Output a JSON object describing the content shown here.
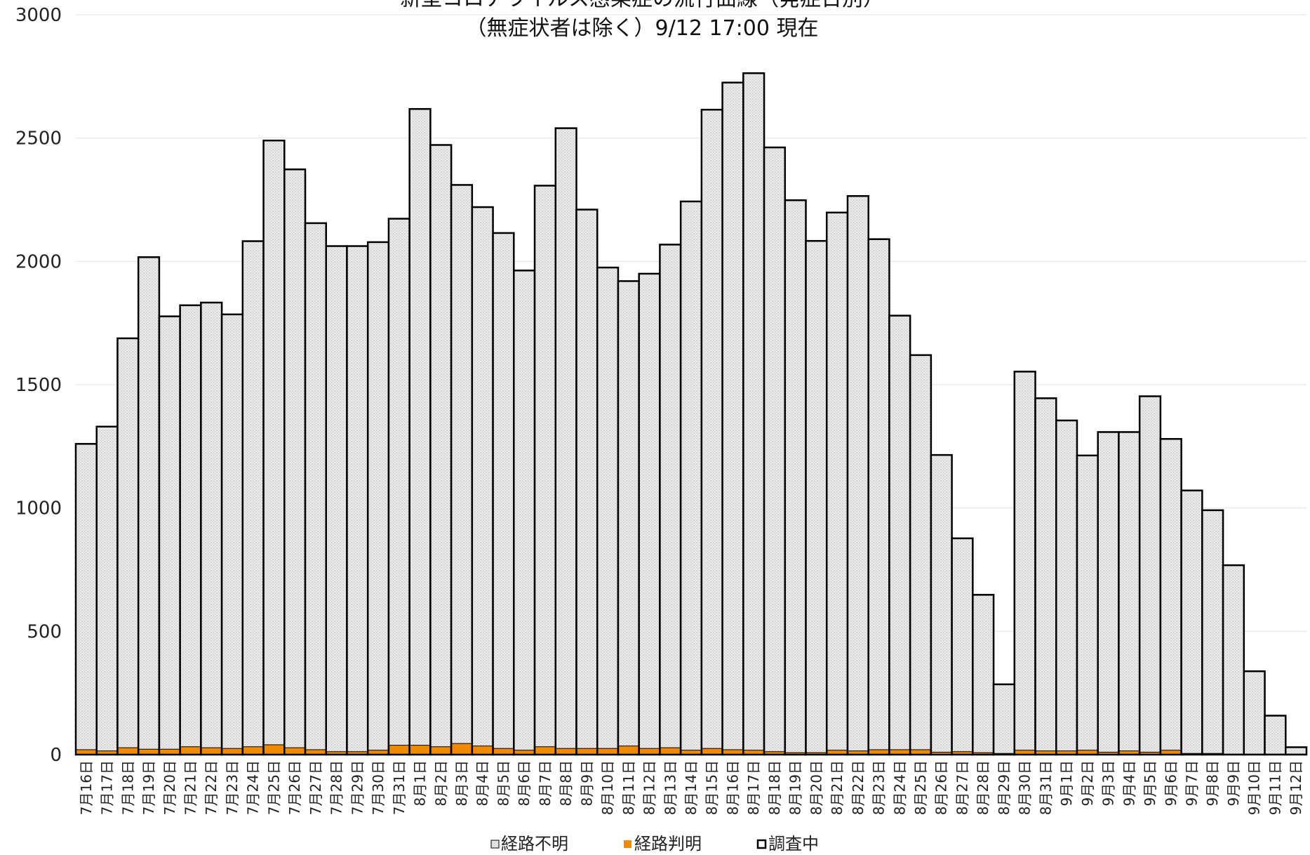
{
  "chart_data": {
    "type": "bar",
    "stacked": true,
    "title_lines": [
      "新型コロナウイルス感染症の流行曲線（発症日別）",
      "（無症状者は除く）9/12 17:00 現在"
    ],
    "ylim": [
      0,
      3000
    ],
    "yticks": [
      0,
      500,
      1000,
      1500,
      2000,
      2500,
      3000
    ],
    "grid": true,
    "legend_position": "bottom",
    "categories": [
      "7月16日",
      "7月17日",
      "7月18日",
      "7月19日",
      "7月20日",
      "7月21日",
      "7月22日",
      "7月23日",
      "7月24日",
      "7月25日",
      "7月26日",
      "7月27日",
      "7月28日",
      "7月29日",
      "7月30日",
      "7月31日",
      "8月1日",
      "8月2日",
      "8月3日",
      "8月4日",
      "8月5日",
      "8月6日",
      "8月7日",
      "8月8日",
      "8月9日",
      "8月10日",
      "8月11日",
      "8月12日",
      "8月13日",
      "8月14日",
      "8月15日",
      "8月16日",
      "8月17日",
      "8月18日",
      "8月19日",
      "8月20日",
      "8月21日",
      "8月22日",
      "8月23日",
      "8月24日",
      "8月25日",
      "8月26日",
      "8月27日",
      "8月28日",
      "8月29日",
      "8月30日",
      "8月31日",
      "9月1日",
      "9月2日",
      "9月3日",
      "9月4日",
      "9月5日",
      "9月6日",
      "9月7日",
      "9月8日",
      "9月9日",
      "9月10日",
      "9月11日",
      "9月12日"
    ],
    "series": [
      {
        "name": "経路判明",
        "color": "#f08a00",
        "values": [
          20,
          15,
          28,
          22,
          22,
          32,
          28,
          25,
          32,
          40,
          28,
          20,
          12,
          12,
          18,
          38,
          38,
          32,
          45,
          35,
          25,
          18,
          32,
          25,
          25,
          25,
          35,
          25,
          28,
          18,
          25,
          20,
          18,
          12,
          8,
          8,
          18,
          15,
          20,
          20,
          20,
          10,
          12,
          8,
          5,
          18,
          15,
          15,
          18,
          10,
          15,
          10,
          18,
          5,
          5,
          2,
          2,
          2,
          2
        ]
      },
      {
        "name": "経路不明",
        "color": "#e0e0e0",
        "values": [
          1240,
          1315,
          1660,
          1995,
          1755,
          1790,
          1805,
          1760,
          2050,
          2450,
          2345,
          2135,
          2050,
          2050,
          2060,
          2135,
          2580,
          2440,
          2265,
          2185,
          2090,
          1945,
          2275,
          2515,
          2185,
          1950,
          1885,
          1925,
          2040,
          2225,
          2590,
          2705,
          2745,
          2450,
          2240,
          2075,
          2180,
          2250,
          2070,
          1760,
          1600,
          1205,
          865,
          640,
          280,
          1535,
          1430,
          1340,
          1195,
          1298,
          1293,
          1443,
          1262,
          1066,
          986,
          766,
          336,
          156,
          28
        ]
      },
      {
        "name": "調査中",
        "color": "#ffffff",
        "values": [
          0,
          0,
          0,
          0,
          0,
          0,
          0,
          0,
          0,
          0,
          0,
          0,
          0,
          0,
          0,
          0,
          0,
          0,
          0,
          0,
          0,
          0,
          0,
          0,
          0,
          0,
          0,
          0,
          0,
          0,
          0,
          0,
          0,
          0,
          0,
          0,
          0,
          0,
          0,
          0,
          0,
          0,
          0,
          0,
          0,
          0,
          0,
          0,
          0,
          0,
          0,
          0,
          0,
          0,
          0,
          0,
          0,
          0,
          0
        ]
      }
    ]
  },
  "legend": [
    {
      "label": "経路不明",
      "color": "#e0e0e0"
    },
    {
      "label": "経路判明",
      "color": "#f08a00"
    },
    {
      "label": "調査中",
      "color": "#ffffff"
    }
  ]
}
